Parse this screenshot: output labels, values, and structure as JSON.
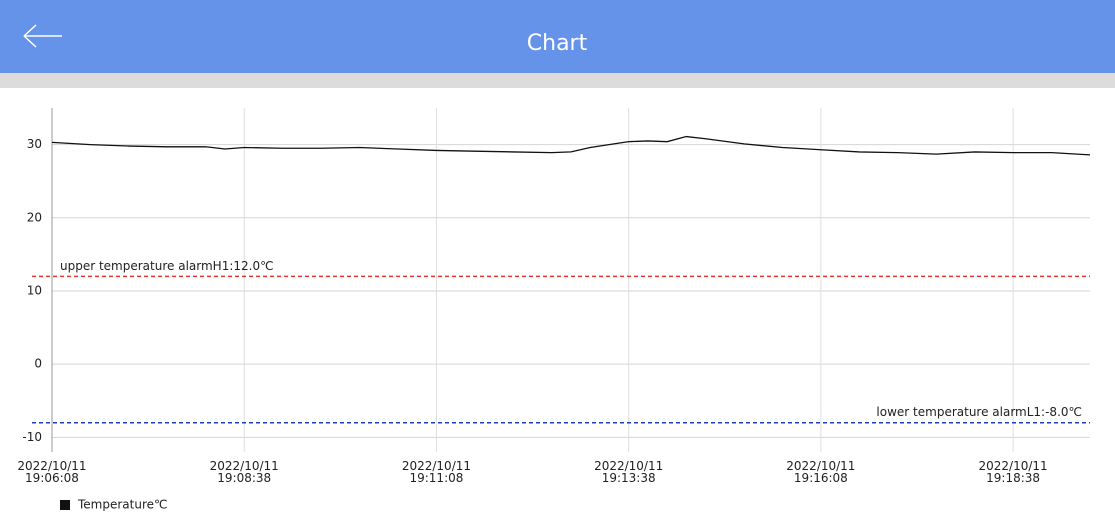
{
  "header": {
    "title": "Chart"
  },
  "chart_data": {
    "type": "line",
    "x": [
      "2022/10/11 19:06:08",
      "2022/10/11 19:06:38",
      "2022/10/11 19:07:08",
      "2022/10/11 19:07:38",
      "2022/10/11 19:08:08",
      "2022/10/11 19:08:23",
      "2022/10/11 19:08:38",
      "2022/10/11 19:09:08",
      "2022/10/11 19:09:38",
      "2022/10/11 19:10:08",
      "2022/10/11 19:10:38",
      "2022/10/11 19:11:08",
      "2022/10/11 19:11:38",
      "2022/10/11 19:12:08",
      "2022/10/11 19:12:38",
      "2022/10/11 19:12:53",
      "2022/10/11 19:13:08",
      "2022/10/11 19:13:38",
      "2022/10/11 19:13:53",
      "2022/10/11 19:14:08",
      "2022/10/11 19:14:23",
      "2022/10/11 19:14:38",
      "2022/10/11 19:15:08",
      "2022/10/11 19:15:38",
      "2022/10/11 19:16:08",
      "2022/10/11 19:16:38",
      "2022/10/11 19:17:08",
      "2022/10/11 19:17:38",
      "2022/10/11 19:18:08",
      "2022/10/11 19:18:38",
      "2022/10/11 19:19:08",
      "2022/10/11 19:19:38"
    ],
    "series": [
      {
        "name": "Temperature℃",
        "color": "#111111",
        "values": [
          30.3,
          30.0,
          29.8,
          29.7,
          29.7,
          29.4,
          29.6,
          29.5,
          29.5,
          29.6,
          29.4,
          29.2,
          29.1,
          29.0,
          28.9,
          29.0,
          29.6,
          30.4,
          30.5,
          30.4,
          31.1,
          30.8,
          30.1,
          29.6,
          29.3,
          29.0,
          28.9,
          28.7,
          29.0,
          28.9,
          28.9,
          28.6
        ]
      }
    ],
    "xlim": [
      "2022/10/11 19:06:08",
      "2022/10/11 19:19:38"
    ],
    "xticks": [
      {
        "value": "2022/10/11 19:06:08",
        "label": "2022/10/11\n19:06:08"
      },
      {
        "value": "2022/10/11 19:08:38",
        "label": "2022/10/11\n19:08:38"
      },
      {
        "value": "2022/10/11 19:11:08",
        "label": "2022/10/11\n19:11:08"
      },
      {
        "value": "2022/10/11 19:13:38",
        "label": "2022/10/11\n19:13:38"
      },
      {
        "value": "2022/10/11 19:16:08",
        "label": "2022/10/11\n19:16:08"
      },
      {
        "value": "2022/10/11 19:18:38",
        "label": "2022/10/11\n19:18:38"
      }
    ],
    "ylim": [
      -12,
      35
    ],
    "yticks": [
      -10,
      0,
      10,
      20,
      30
    ],
    "grid": true,
    "legend": "bottom-left",
    "limit_lines": [
      {
        "label": "upper temperature alarmH1:12.0℃",
        "value": 12,
        "color": "#e53935"
      },
      {
        "label": "lower temperature alarmL1:-8.0℃",
        "value": -8,
        "color": "#1e3fbf"
      }
    ]
  }
}
